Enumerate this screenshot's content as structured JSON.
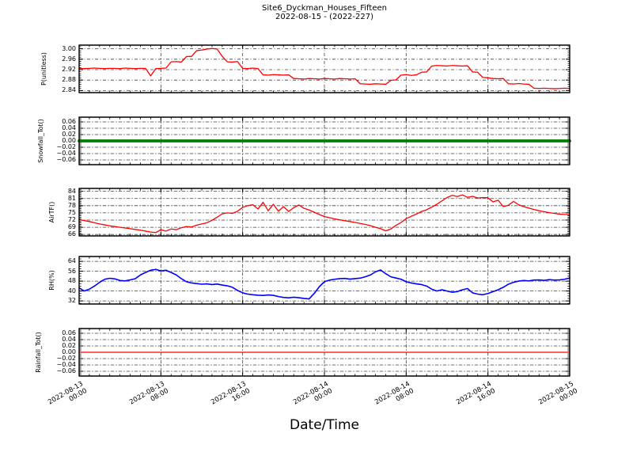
{
  "title": {
    "line1": "Site6_Dyckman_Houses_Fifteen",
    "line2": "2022-08-15 - (2022-227)"
  },
  "x_axis": {
    "label": "Date/Time",
    "range_hours": [
      0,
      48
    ],
    "tick_hours": [
      0,
      8,
      16,
      24,
      32,
      40,
      48
    ],
    "tick_labels": [
      [
        "2022-08-13",
        "00:00"
      ],
      [
        "2022-08-13",
        "08:00"
      ],
      [
        "2022-08-13",
        "16:00"
      ],
      [
        "2022-08-14",
        "00:00"
      ],
      [
        "2022-08-14",
        "08:00"
      ],
      [
        "2022-08-14",
        "16:00"
      ],
      [
        "2022-08-15",
        "00:00"
      ]
    ]
  },
  "chart_data": [
    {
      "type": "line",
      "ylabel": "P(unitless)",
      "color": "#ff0000",
      "line_width": 1.3,
      "ylim": [
        2.832,
        3.014
      ],
      "ytick_values": [
        3.0,
        2.96,
        2.92,
        2.88,
        2.84
      ],
      "ytick_labels": [
        "3.00",
        "2.96",
        "2.92",
        "2.88",
        "2.84"
      ],
      "y_minor_step": 0.008,
      "grid": true,
      "x_start": 0,
      "x_step": 0.5,
      "values": [
        2.925,
        2.924,
        2.925,
        2.926,
        2.925,
        2.924,
        2.925,
        2.925,
        2.924,
        2.926,
        2.925,
        2.924,
        2.925,
        2.925,
        2.896,
        2.924,
        2.925,
        2.926,
        2.95,
        2.951,
        2.949,
        2.97,
        2.971,
        2.993,
        2.995,
        2.999,
        3.001,
        2.999,
        2.971,
        2.95,
        2.949,
        2.951,
        2.925,
        2.924,
        2.926,
        2.924,
        2.9,
        2.899,
        2.901,
        2.9,
        2.899,
        2.9,
        2.886,
        2.885,
        2.884,
        2.886,
        2.885,
        2.884,
        2.886,
        2.885,
        2.884,
        2.886,
        2.885,
        2.884,
        2.885,
        2.866,
        2.865,
        2.864,
        2.866,
        2.865,
        2.864,
        2.879,
        2.881,
        2.899,
        2.901,
        2.898,
        2.9,
        2.91,
        2.911,
        2.934,
        2.936,
        2.935,
        2.934,
        2.936,
        2.935,
        2.934,
        2.935,
        2.911,
        2.91,
        2.89,
        2.889,
        2.886,
        2.885,
        2.886,
        2.866,
        2.865,
        2.867,
        2.865,
        2.864,
        2.849,
        2.848,
        2.849,
        2.848,
        2.847,
        2.848,
        2.849,
        2.848
      ]
    },
    {
      "type": "line",
      "ylabel": "Snowfall_Tot()",
      "color": "#008000",
      "line_width": 3.8,
      "ylim": [
        -0.075,
        0.075
      ],
      "ytick_values": [
        0.06,
        0.04,
        0.02,
        0.0,
        -0.02,
        -0.04,
        -0.06
      ],
      "ytick_labels": [
        "0.06",
        "0.04",
        "0.02",
        "0.00",
        "−0.02",
        "−0.04",
        "−0.06"
      ],
      "y_minor_step": 0.005,
      "grid": true,
      "x": [
        0,
        48
      ],
      "values": [
        0,
        0
      ]
    },
    {
      "type": "line",
      "ylabel": "AirTF()",
      "color": "#ff0000",
      "line_width": 1.3,
      "ylim": [
        65.4,
        85.2
      ],
      "ytick_values": [
        84,
        81,
        78,
        75,
        72,
        69,
        66
      ],
      "ytick_labels": [
        "84",
        "81",
        "78",
        "75",
        "72",
        "69",
        "66"
      ],
      "y_minor_step": 0.6,
      "grid": true,
      "x_start": 0,
      "x_step": 0.5,
      "values": [
        72.2,
        71.8,
        71.4,
        70.9,
        70.4,
        70.0,
        69.6,
        69.3,
        69.0,
        68.7,
        68.4,
        68.1,
        67.8,
        67.4,
        67.0,
        66.8,
        68.0,
        67.4,
        68.3,
        68.0,
        68.8,
        69.3,
        69.1,
        69.9,
        70.4,
        70.9,
        71.9,
        73.2,
        74.6,
        75.0,
        74.8,
        75.7,
        77.3,
        78.0,
        78.4,
        76.6,
        79.4,
        75.9,
        78.6,
        75.7,
        77.6,
        75.6,
        77.2,
        78.3,
        76.9,
        76.2,
        75.3,
        74.3,
        73.5,
        73.0,
        72.5,
        72.1,
        71.7,
        71.4,
        71.0,
        70.6,
        70.2,
        69.7,
        69.0,
        68.4,
        67.5,
        68.3,
        69.8,
        71.0,
        72.6,
        73.6,
        74.5,
        75.6,
        76.3,
        77.4,
        78.6,
        80.0,
        81.4,
        82.3,
        81.8,
        82.5,
        81.5,
        81.9,
        81.2,
        81.4,
        81.3,
        79.6,
        80.3,
        77.6,
        78.2,
        79.8,
        78.4,
        77.6,
        77.0,
        76.4,
        75.9,
        75.5,
        75.1,
        74.8,
        74.5,
        74.3,
        74.3
      ]
    },
    {
      "type": "line",
      "ylabel": "RH(%)",
      "color": "#0000ff",
      "line_width": 1.6,
      "ylim": [
        29.5,
        67.9
      ],
      "ytick_values": [
        64,
        56,
        48,
        40,
        32
      ],
      "ytick_labels": [
        "64",
        "56",
        "48",
        "40",
        "32"
      ],
      "y_minor_step": 2,
      "grid": true,
      "x_start": 0,
      "x_step": 0.5,
      "values": [
        42.5,
        40.0,
        41.5,
        44.0,
        47.0,
        49.5,
        50.3,
        49.8,
        48.5,
        48.2,
        49.0,
        50.0,
        53.0,
        55.0,
        56.8,
        57.5,
        56.2,
        56.8,
        55.0,
        53.0,
        50.0,
        47.5,
        46.5,
        46.0,
        45.5,
        45.8,
        45.2,
        45.6,
        44.8,
        44.2,
        43.0,
        40.5,
        38.5,
        37.5,
        37.0,
        36.6,
        36.4,
        36.8,
        36.5,
        35.5,
        34.8,
        34.5,
        35.0,
        34.6,
        34.0,
        33.6,
        38.0,
        43.5,
        47.5,
        48.8,
        49.5,
        50.0,
        50.2,
        49.6,
        50.0,
        50.4,
        51.5,
        53.0,
        55.5,
        57.0,
        54.0,
        51.5,
        50.5,
        49.5,
        47.5,
        46.5,
        45.8,
        45.2,
        44.0,
        41.5,
        40.0,
        41.0,
        40.0,
        39.0,
        39.5,
        41.0,
        42.0,
        38.5,
        37.5,
        37.0,
        38.0,
        39.5,
        41.0,
        43.0,
        45.5,
        47.0,
        48.0,
        48.5,
        48.2,
        48.8,
        49.0,
        48.6,
        49.2,
        48.8,
        49.0,
        49.5,
        50.5
      ]
    },
    {
      "type": "line",
      "ylabel": "Rainfall_Tot()",
      "color": "#ff0000",
      "line_width": 1.2,
      "ylim": [
        -0.075,
        0.075
      ],
      "ytick_values": [
        0.06,
        0.04,
        0.02,
        0.0,
        -0.02,
        -0.04,
        -0.06
      ],
      "ytick_labels": [
        "0.06",
        "0.04",
        "0.02",
        "0.00",
        "−0.02",
        "−0.04",
        "−0.06"
      ],
      "y_minor_step": 0.005,
      "grid": true,
      "x": [
        0,
        48
      ],
      "values": [
        0,
        0
      ]
    }
  ]
}
